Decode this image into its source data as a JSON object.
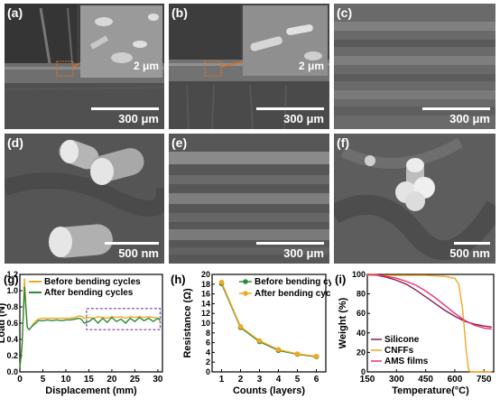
{
  "panels": {
    "a": {
      "label": "(a)",
      "scale": "300 μm",
      "inset_scale": "2 μm"
    },
    "b": {
      "label": "(b)",
      "scale": "300 μm",
      "inset_scale": "2 μm"
    },
    "c": {
      "label": "(c)",
      "scale": "300 μm"
    },
    "d": {
      "label": "(d)",
      "scale": "500 nm"
    },
    "e": {
      "label": "(e)",
      "scale": "300 μm"
    },
    "f": {
      "label": "(f)",
      "scale": "500 nm"
    }
  },
  "chart_data": [
    {
      "panel": "(g)",
      "type": "line",
      "xlabel": "Displacement (mm)",
      "ylabel": "Load (N)",
      "xlim": [
        0,
        31
      ],
      "ylim": [
        0.0,
        1.2
      ],
      "xticks": [
        0,
        5,
        10,
        15,
        20,
        25,
        30
      ],
      "yticks": [
        0.0,
        0.2,
        0.4,
        0.6,
        0.8,
        1.0,
        1.2
      ],
      "legend": "top-right",
      "series": [
        {
          "name": "Before  bending cycles",
          "color": "#f5a623",
          "x": [
            0,
            0.5,
            1,
            1.3,
            1.6,
            2,
            2.5,
            3,
            3.5,
            4,
            5,
            6,
            7,
            8,
            9,
            10,
            11,
            12,
            13,
            13.5,
            14,
            15,
            16,
            17,
            18,
            19,
            20,
            21,
            22,
            23,
            24,
            25,
            26,
            27,
            28,
            29,
            30,
            30.5
          ],
          "y": [
            0.05,
            0.3,
            1.15,
            0.85,
            0.55,
            0.52,
            0.55,
            0.6,
            0.63,
            0.65,
            0.66,
            0.66,
            0.66,
            0.66,
            0.66,
            0.66,
            0.66,
            0.67,
            0.69,
            0.68,
            0.66,
            0.67,
            0.66,
            0.68,
            0.67,
            0.66,
            0.68,
            0.67,
            0.68,
            0.66,
            0.68,
            0.67,
            0.68,
            0.67,
            0.68,
            0.67,
            0.66,
            0.62
          ]
        },
        {
          "name": "After  bending cycles",
          "color": "#2e8b3a",
          "x": [
            0,
            0.5,
            1,
            1.3,
            1.6,
            2,
            2.5,
            3,
            3.5,
            4,
            5,
            6,
            7,
            8,
            9,
            10,
            11,
            12,
            13,
            13.5,
            14,
            15,
            16,
            17,
            18,
            19,
            20,
            21,
            22,
            23,
            24,
            25,
            26,
            27,
            28,
            29,
            30,
            30.5
          ],
          "y": [
            0.05,
            0.35,
            1.05,
            0.8,
            0.55,
            0.52,
            0.55,
            0.58,
            0.6,
            0.63,
            0.63,
            0.64,
            0.63,
            0.64,
            0.63,
            0.64,
            0.64,
            0.65,
            0.66,
            0.64,
            0.6,
            0.62,
            0.66,
            0.6,
            0.66,
            0.61,
            0.67,
            0.62,
            0.65,
            0.6,
            0.66,
            0.62,
            0.67,
            0.63,
            0.66,
            0.62,
            0.66,
            0.64
          ]
        }
      ]
    },
    {
      "panel": "(h)",
      "type": "line",
      "xlabel": "Counts (layers)",
      "ylabel": "Resistance (Ω)",
      "xlim": [
        0.5,
        6.5
      ],
      "ylim": [
        0,
        20
      ],
      "xticks": [
        1,
        2,
        3,
        4,
        5,
        6
      ],
      "yticks": [
        0,
        2,
        4,
        6,
        8,
        10,
        12,
        14,
        16,
        18,
        20
      ],
      "legend": "top-right",
      "series": [
        {
          "name": "Before bending cycles",
          "color": "#2e8b3a",
          "x": [
            1,
            2,
            3,
            4,
            5,
            6
          ],
          "y": [
            18.1,
            9.1,
            6.2,
            4.4,
            3.6,
            3.1
          ]
        },
        {
          "name": "After bending cycles",
          "color": "#f5a623",
          "x": [
            1,
            2,
            3,
            4,
            5,
            6
          ],
          "y": [
            18.4,
            9.3,
            6.4,
            4.6,
            3.7,
            3.2
          ]
        }
      ]
    },
    {
      "panel": "(i)",
      "type": "line",
      "xlabel": "Temperature(°C)",
      "ylabel": "Weight (%)",
      "xlim": [
        150,
        800
      ],
      "ylim": [
        0,
        100
      ],
      "xticks": [
        150,
        300,
        450,
        600,
        750
      ],
      "yticks": [
        0,
        20,
        40,
        60,
        80,
        100
      ],
      "legend": "bottom-left",
      "series": [
        {
          "name": "Silicone",
          "color": "#8b1a5a",
          "x": [
            150,
            200,
            250,
            300,
            350,
            400,
            450,
            500,
            550,
            600,
            650,
            700,
            750,
            790
          ],
          "y": [
            100,
            99,
            97,
            94,
            90,
            84,
            77,
            70,
            63,
            57,
            52,
            49,
            47,
            46
          ]
        },
        {
          "name": "CNFFs",
          "color": "#f5a623",
          "x": [
            150,
            300,
            450,
            550,
            600,
            620,
            640,
            660,
            670,
            680,
            700,
            790
          ],
          "y": [
            99,
            99,
            99,
            98,
            96,
            90,
            65,
            20,
            3,
            0,
            0,
            0
          ]
        },
        {
          "name": "AMS films",
          "color": "#e8336d",
          "x": [
            150,
            200,
            250,
            300,
            350,
            400,
            450,
            500,
            550,
            600,
            650,
            700,
            750,
            790
          ],
          "y": [
            100,
            99.5,
            98,
            96,
            93,
            89,
            83,
            76,
            68,
            60,
            53,
            48,
            45,
            44
          ]
        }
      ]
    }
  ]
}
